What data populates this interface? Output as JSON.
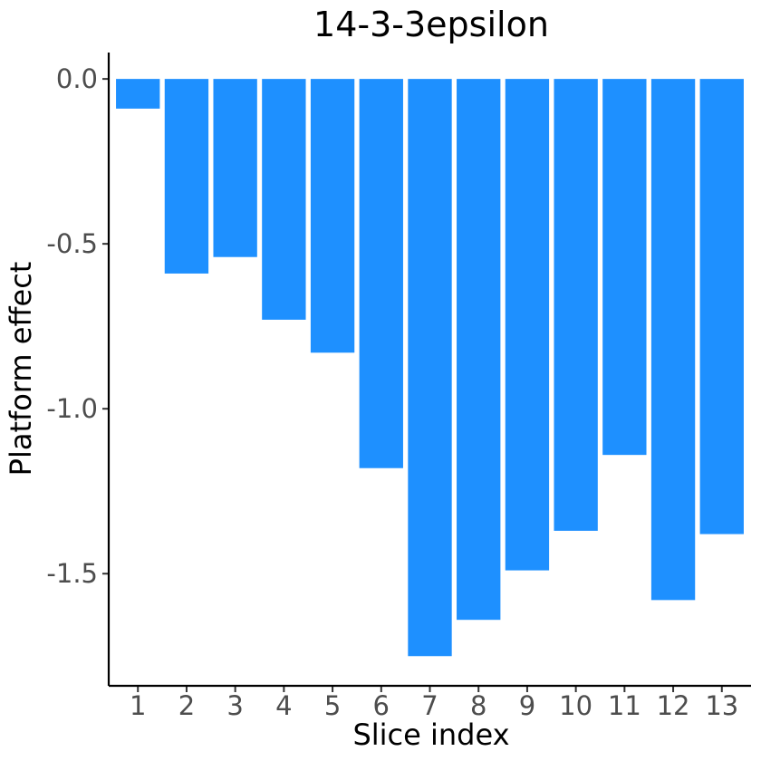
{
  "chart_data": {
    "type": "bar",
    "title": "14-3-3epsilon",
    "xlabel": "Slice index",
    "ylabel": "Platform effect",
    "categories": [
      "1",
      "2",
      "3",
      "4",
      "5",
      "6",
      "7",
      "8",
      "9",
      "10",
      "11",
      "12",
      "13"
    ],
    "values": [
      -0.09,
      -0.59,
      -0.54,
      -0.73,
      -0.83,
      -1.18,
      -1.75,
      -1.64,
      -1.49,
      -1.37,
      -1.14,
      -1.58,
      -1.38
    ],
    "ylim": [
      -1.84,
      0.08
    ],
    "yticks": [
      0.0,
      -0.5,
      -1.0,
      -1.5
    ],
    "ytick_labels": [
      "0.0",
      "-0.5",
      "-1.0",
      "-1.5"
    ],
    "bar_color": "#1E90FF",
    "grid": false,
    "legend": "none"
  }
}
